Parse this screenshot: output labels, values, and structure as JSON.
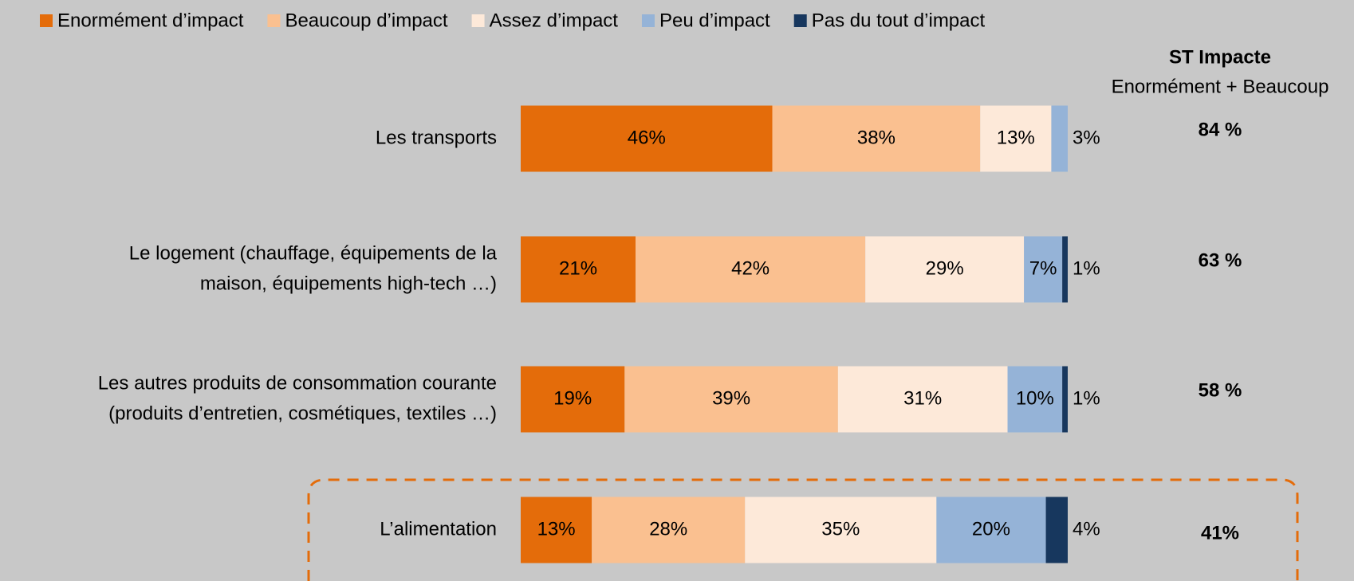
{
  "chart_data": {
    "type": "stacked-bar-horizontal",
    "categories": [
      [
        "Les transports"
      ],
      [
        "Le logement (chauffage, équipements de la",
        "maison, équipements high-tech …)"
      ],
      [
        "Les autres produits de consommation courante",
        "(produits d’entretien, cosmétiques, textiles …)"
      ],
      [
        "L’alimentation"
      ]
    ],
    "xlim": [
      0,
      100
    ],
    "legend": "top",
    "series": [
      {
        "name": "Enormément d’impact",
        "color": "#e46c0a",
        "values": [
          46,
          21,
          19,
          13
        ],
        "value_labels": [
          "46%",
          "21%",
          "19%",
          "13%"
        ]
      },
      {
        "name": "Beaucoup d’impact",
        "color": "#fac090",
        "values": [
          38,
          42,
          39,
          28
        ],
        "value_labels": [
          "38%",
          "42%",
          "39%",
          "28%"
        ]
      },
      {
        "name": "Assez d’impact",
        "color": "#fde9d9",
        "values": [
          13,
          29,
          31,
          35
        ],
        "value_labels": [
          "13%",
          "29%",
          "31%",
          "35%"
        ]
      },
      {
        "name": "Peu d’impact",
        "color": "#95b3d7",
        "values": [
          3,
          7,
          10,
          20
        ],
        "value_labels": [
          "3%",
          "7%",
          "10%",
          "20%"
        ]
      },
      {
        "name": "Pas du tout d’impact",
        "color": "#17375e",
        "values": [
          0,
          1,
          1,
          4
        ],
        "value_labels": [
          null,
          "1%",
          "1%",
          "4%"
        ]
      }
    ],
    "totals": {
      "title": "ST Impacte",
      "subtitle": "Enormément + Beaucoup",
      "color": "#e46c0a",
      "values": [
        84,
        63,
        58,
        41
      ],
      "value_labels": [
        "84 %",
        "63 %",
        "58 %",
        "41%"
      ]
    },
    "highlight": {
      "category": 3,
      "color": "#e46c0a"
    }
  }
}
